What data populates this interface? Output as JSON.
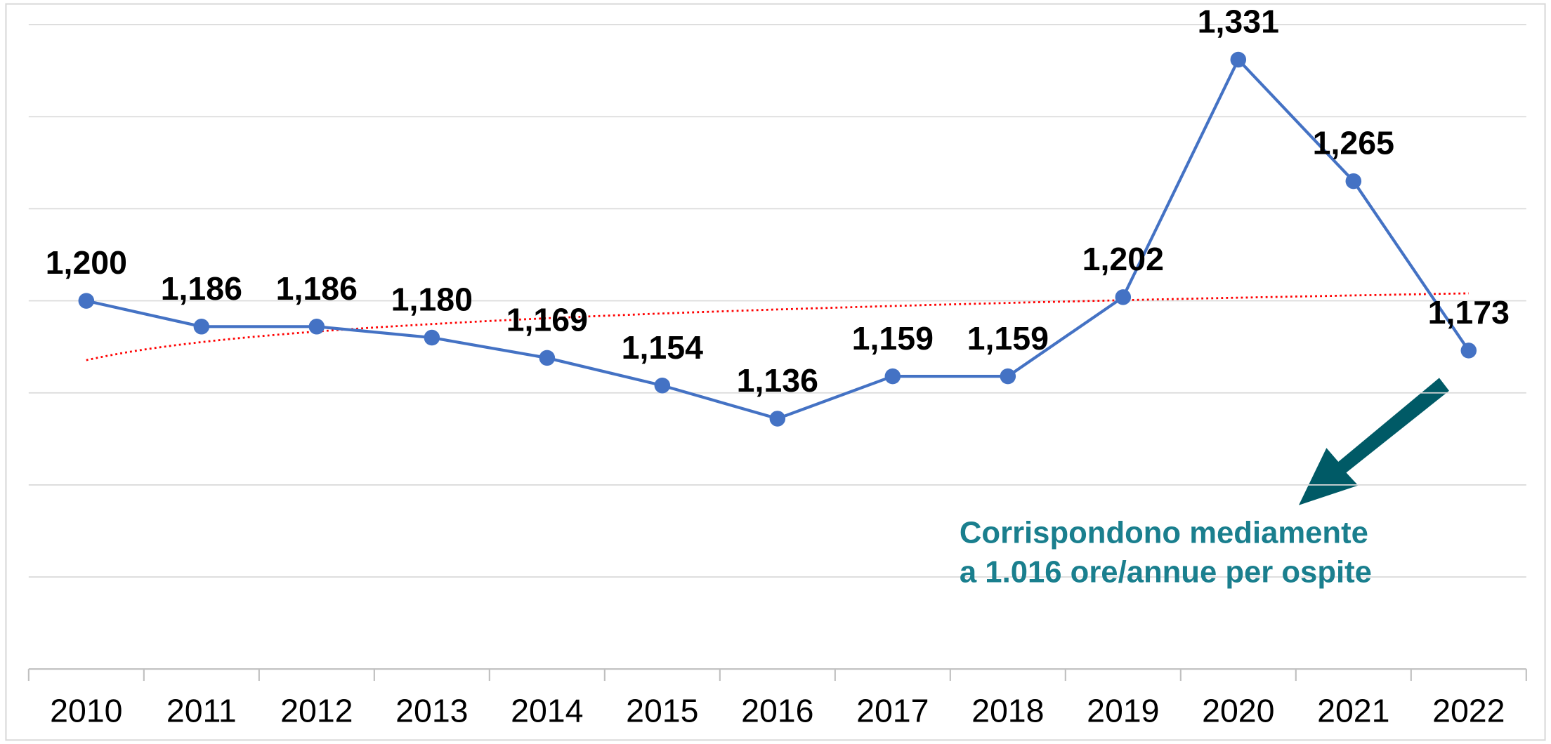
{
  "chart_data": {
    "type": "line",
    "categories": [
      "2010",
      "2011",
      "2012",
      "2013",
      "2014",
      "2015",
      "2016",
      "2017",
      "2018",
      "2019",
      "2020",
      "2021",
      "2022"
    ],
    "series": [
      {
        "color": "#4472c4",
        "values": [
          1200,
          1186,
          1186,
          1180,
          1169,
          1154,
          1136,
          1159,
          1159,
          1202,
          1331,
          1265,
          1173
        ],
        "value_labels": [
          "1,200",
          "1,186",
          "1,186",
          "1,180",
          "1,169",
          "1,154",
          "1,136",
          "1,159",
          "1,159",
          "1,202",
          "1,331",
          "1,265",
          "1,173"
        ]
      }
    ],
    "ylim": [
      1000,
      1350
    ],
    "yticks": [
      1000,
      1050,
      1100,
      1150,
      1200,
      1250,
      1300,
      1350
    ],
    "grid": true,
    "trendline": {
      "type": "logarithmic",
      "color": "#ff0000"
    },
    "annotation": {
      "lines": [
        "Corrispondono mediamente",
        "a 1.016 ore/annue per ospite"
      ],
      "color": "#1a7f8e"
    }
  }
}
